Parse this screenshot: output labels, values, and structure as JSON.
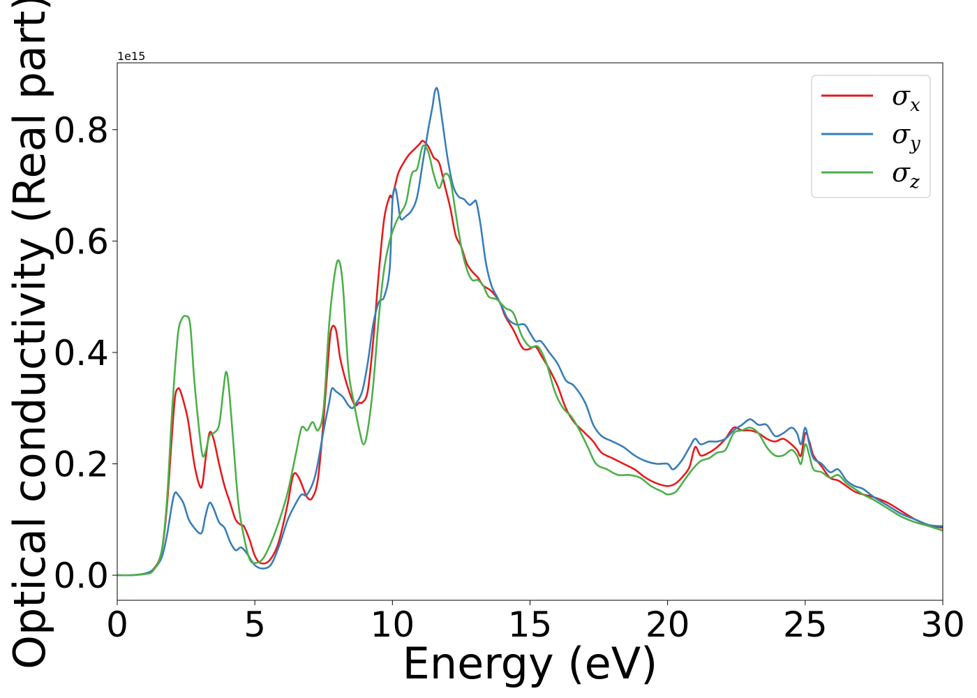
{
  "chart_data": {
    "type": "line",
    "title": "",
    "xlabel": "Energy (eV)",
    "ylabel": "Optical conductivity (Real part)",
    "y_offset_text": "1e15",
    "xlim": [
      0,
      30
    ],
    "ylim": [
      -0.045,
      0.92
    ],
    "x_ticks": [
      0,
      5,
      10,
      15,
      20,
      25,
      30
    ],
    "x_tick_labels": [
      "0",
      "5",
      "10",
      "15",
      "20",
      "25",
      "30"
    ],
    "y_ticks": [
      0.0,
      0.2,
      0.4,
      0.6,
      0.8
    ],
    "y_tick_labels": [
      "0.0",
      "0.2",
      "0.4",
      "0.6",
      "0.8"
    ],
    "grid": false,
    "legend_position": "top-right",
    "series": [
      {
        "name": "x",
        "legend_base": "σ",
        "legend_sub": "x",
        "color": "#e41a1c",
        "x": [
          0,
          0.5,
          1.0,
          1.3,
          1.6,
          1.8,
          2.0,
          2.1,
          2.2,
          2.3,
          2.5,
          2.6,
          2.8,
          3.0,
          3.1,
          3.2,
          3.35,
          3.5,
          3.7,
          3.9,
          4.1,
          4.3,
          4.5,
          4.6,
          4.8,
          5.0,
          5.2,
          5.5,
          5.8,
          6.0,
          6.2,
          6.4,
          6.6,
          6.9,
          7.1,
          7.3,
          7.5,
          7.7,
          7.8,
          7.95,
          8.1,
          8.3,
          8.5,
          8.65,
          8.8,
          8.9,
          9.1,
          9.3,
          9.5,
          9.7,
          9.9,
          10.0,
          10.2,
          10.4,
          10.6,
          10.8,
          11.0,
          11.1,
          11.3,
          11.5,
          11.7,
          11.9,
          12.1,
          12.3,
          12.5,
          12.7,
          12.9,
          13.1,
          13.3,
          13.6,
          13.9,
          14.1,
          14.4,
          14.7,
          14.9,
          15.2,
          15.4,
          15.7,
          16.0,
          16.3,
          16.6,
          17.0,
          17.3,
          17.6,
          18.0,
          18.4,
          18.8,
          19.2,
          19.6,
          20.0,
          20.3,
          20.6,
          20.8,
          21.0,
          21.2,
          21.5,
          21.8,
          22.1,
          22.4,
          22.7,
          23.0,
          23.3,
          23.6,
          23.9,
          24.2,
          24.5,
          24.7,
          24.85,
          25.0,
          25.15,
          25.3,
          25.6,
          25.9,
          26.2,
          26.5,
          26.8,
          27.1,
          27.5,
          28.0,
          28.5,
          29.0,
          29.5,
          30.0
        ],
        "y": [
          0.0,
          0.0,
          0.003,
          0.01,
          0.04,
          0.12,
          0.26,
          0.32,
          0.335,
          0.33,
          0.295,
          0.27,
          0.2,
          0.16,
          0.165,
          0.205,
          0.255,
          0.245,
          0.2,
          0.16,
          0.13,
          0.1,
          0.09,
          0.088,
          0.065,
          0.035,
          0.022,
          0.025,
          0.05,
          0.085,
          0.13,
          0.18,
          0.175,
          0.14,
          0.14,
          0.175,
          0.28,
          0.41,
          0.445,
          0.44,
          0.39,
          0.35,
          0.32,
          0.305,
          0.31,
          0.31,
          0.33,
          0.42,
          0.54,
          0.64,
          0.68,
          0.68,
          0.72,
          0.74,
          0.755,
          0.765,
          0.775,
          0.78,
          0.77,
          0.75,
          0.74,
          0.7,
          0.66,
          0.61,
          0.59,
          0.56,
          0.545,
          0.535,
          0.52,
          0.51,
          0.49,
          0.465,
          0.44,
          0.41,
          0.405,
          0.41,
          0.395,
          0.37,
          0.34,
          0.3,
          0.275,
          0.255,
          0.24,
          0.22,
          0.21,
          0.2,
          0.19,
          0.175,
          0.165,
          0.16,
          0.165,
          0.18,
          0.195,
          0.23,
          0.215,
          0.22,
          0.23,
          0.245,
          0.265,
          0.26,
          0.26,
          0.255,
          0.245,
          0.24,
          0.245,
          0.235,
          0.225,
          0.215,
          0.255,
          0.24,
          0.215,
          0.195,
          0.175,
          0.17,
          0.16,
          0.15,
          0.145,
          0.14,
          0.13,
          0.115,
          0.1,
          0.09,
          0.085
        ],
        "display_smoothing": 0.5
      },
      {
        "name": "y",
        "legend_base": "σ",
        "legend_sub": "y",
        "color": "#377eb8",
        "x": [
          0,
          0.5,
          1.0,
          1.3,
          1.6,
          1.8,
          2.0,
          2.1,
          2.2,
          2.4,
          2.6,
          2.8,
          3.0,
          3.1,
          3.2,
          3.35,
          3.5,
          3.7,
          3.9,
          4.1,
          4.3,
          4.5,
          4.7,
          5.0,
          5.3,
          5.6,
          5.9,
          6.2,
          6.5,
          6.7,
          6.9,
          7.2,
          7.5,
          7.7,
          7.8,
          7.95,
          8.2,
          8.4,
          8.55,
          8.7,
          8.9,
          9.1,
          9.3,
          9.5,
          9.7,
          9.9,
          10.0,
          10.1,
          10.2,
          10.3,
          10.5,
          10.7,
          10.9,
          11.1,
          11.3,
          11.45,
          11.55,
          11.65,
          11.8,
          12.0,
          12.2,
          12.4,
          12.6,
          12.8,
          12.95,
          13.05,
          13.2,
          13.4,
          13.6,
          13.8,
          14.0,
          14.2,
          14.5,
          14.8,
          15.0,
          15.2,
          15.4,
          15.7,
          16.0,
          16.3,
          16.6,
          17.0,
          17.3,
          17.6,
          18.0,
          18.4,
          18.8,
          19.2,
          19.6,
          20.0,
          20.2,
          20.5,
          20.8,
          21.0,
          21.2,
          21.5,
          21.8,
          22.1,
          22.4,
          22.7,
          23.0,
          23.3,
          23.6,
          23.9,
          24.2,
          24.5,
          24.7,
          24.85,
          25.0,
          25.15,
          25.3,
          25.6,
          25.9,
          26.2,
          26.5,
          26.8,
          27.1,
          27.5,
          28.0,
          28.5,
          29.0,
          29.5,
          30.0
        ],
        "y": [
          0.0,
          0.0,
          0.003,
          0.01,
          0.03,
          0.07,
          0.13,
          0.148,
          0.145,
          0.13,
          0.1,
          0.085,
          0.075,
          0.08,
          0.105,
          0.13,
          0.12,
          0.095,
          0.085,
          0.06,
          0.045,
          0.05,
          0.04,
          0.018,
          0.012,
          0.02,
          0.055,
          0.1,
          0.13,
          0.145,
          0.145,
          0.18,
          0.26,
          0.31,
          0.335,
          0.33,
          0.32,
          0.305,
          0.3,
          0.31,
          0.33,
          0.38,
          0.45,
          0.49,
          0.5,
          0.55,
          0.67,
          0.695,
          0.67,
          0.64,
          0.645,
          0.655,
          0.68,
          0.74,
          0.8,
          0.84,
          0.87,
          0.87,
          0.82,
          0.75,
          0.7,
          0.68,
          0.675,
          0.665,
          0.67,
          0.67,
          0.63,
          0.56,
          0.52,
          0.5,
          0.48,
          0.46,
          0.45,
          0.45,
          0.435,
          0.42,
          0.42,
          0.4,
          0.38,
          0.35,
          0.34,
          0.31,
          0.27,
          0.25,
          0.24,
          0.23,
          0.215,
          0.205,
          0.2,
          0.2,
          0.19,
          0.205,
          0.23,
          0.245,
          0.235,
          0.24,
          0.24,
          0.245,
          0.26,
          0.27,
          0.28,
          0.27,
          0.27,
          0.25,
          0.255,
          0.265,
          0.255,
          0.235,
          0.265,
          0.235,
          0.21,
          0.2,
          0.185,
          0.19,
          0.17,
          0.16,
          0.155,
          0.14,
          0.125,
          0.11,
          0.1,
          0.09,
          0.088
        ],
        "display_smoothing": 0.5
      },
      {
        "name": "z",
        "legend_base": "σ",
        "legend_sub": "z",
        "color": "#4daf4a",
        "x": [
          0,
          0.5,
          1.0,
          1.3,
          1.6,
          1.8,
          2.0,
          2.2,
          2.35,
          2.5,
          2.65,
          2.8,
          3.0,
          3.1,
          3.2,
          3.35,
          3.5,
          3.7,
          3.85,
          3.95,
          4.05,
          4.2,
          4.4,
          4.6,
          4.8,
          5.0,
          5.3,
          5.6,
          5.9,
          6.2,
          6.5,
          6.7,
          6.9,
          7.1,
          7.3,
          7.5,
          7.7,
          7.9,
          8.05,
          8.2,
          8.4,
          8.6,
          8.8,
          8.95,
          9.1,
          9.3,
          9.5,
          9.7,
          9.9,
          10.1,
          10.3,
          10.5,
          10.7,
          10.9,
          11.1,
          11.3,
          11.5,
          11.7,
          11.9,
          12.1,
          12.3,
          12.5,
          12.7,
          12.9,
          13.1,
          13.3,
          13.5,
          13.8,
          14.1,
          14.4,
          14.7,
          15.0,
          15.3,
          15.6,
          15.9,
          16.2,
          16.5,
          16.8,
          17.1,
          17.4,
          17.8,
          18.2,
          18.6,
          19.0,
          19.4,
          19.8,
          20.0,
          20.3,
          20.6,
          20.9,
          21.2,
          21.5,
          21.8,
          22.1,
          22.4,
          22.7,
          23.0,
          23.3,
          23.6,
          23.9,
          24.2,
          24.5,
          24.7,
          24.85,
          25.0,
          25.15,
          25.3,
          25.6,
          25.9,
          26.2,
          26.5,
          26.8,
          27.1,
          27.5,
          28.0,
          28.5,
          29.0,
          29.5,
          30.0
        ],
        "y": [
          0.0,
          0.0,
          0.002,
          0.008,
          0.04,
          0.13,
          0.3,
          0.43,
          0.46,
          0.465,
          0.45,
          0.35,
          0.25,
          0.215,
          0.22,
          0.25,
          0.255,
          0.27,
          0.33,
          0.365,
          0.34,
          0.25,
          0.13,
          0.07,
          0.03,
          0.022,
          0.03,
          0.06,
          0.1,
          0.15,
          0.22,
          0.265,
          0.26,
          0.275,
          0.26,
          0.3,
          0.45,
          0.54,
          0.565,
          0.52,
          0.37,
          0.31,
          0.26,
          0.235,
          0.26,
          0.34,
          0.46,
          0.55,
          0.6,
          0.63,
          0.65,
          0.67,
          0.72,
          0.73,
          0.77,
          0.76,
          0.72,
          0.695,
          0.72,
          0.71,
          0.65,
          0.59,
          0.55,
          0.53,
          0.53,
          0.52,
          0.5,
          0.495,
          0.48,
          0.47,
          0.43,
          0.41,
          0.41,
          0.38,
          0.33,
          0.3,
          0.285,
          0.26,
          0.23,
          0.2,
          0.19,
          0.18,
          0.18,
          0.175,
          0.16,
          0.15,
          0.145,
          0.15,
          0.17,
          0.19,
          0.205,
          0.21,
          0.22,
          0.225,
          0.255,
          0.26,
          0.265,
          0.255,
          0.23,
          0.215,
          0.215,
          0.225,
          0.215,
          0.2,
          0.235,
          0.215,
          0.19,
          0.185,
          0.175,
          0.18,
          0.165,
          0.155,
          0.145,
          0.135,
          0.12,
          0.105,
          0.095,
          0.088,
          0.08
        ],
        "display_smoothing": 0.5
      }
    ]
  }
}
